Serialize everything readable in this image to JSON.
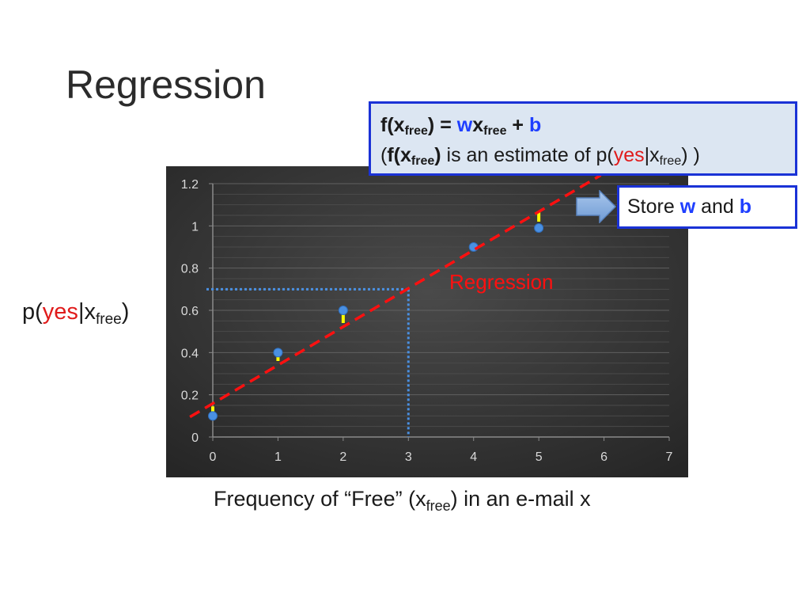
{
  "slide": {
    "title": "Regression"
  },
  "formula": {
    "line1": {
      "lhs": "f(x",
      "lhs_sub": "free",
      "lhs_close": ") = ",
      "w": "w",
      "x": "x",
      "x_sub": "free",
      "plus": " + ",
      "b": "b"
    },
    "line2": {
      "open": "(",
      "f": "f(x",
      "f_sub": "free",
      "f_close": ")",
      "text": " is an estimate of p(",
      "yes": "yes",
      "bar": "|x",
      "x_sub": "free",
      "close": ") )"
    }
  },
  "store_box": {
    "text": "Store ",
    "w": "w",
    "and": " and ",
    "b": "b"
  },
  "axis_labels": {
    "y": {
      "p": "p(",
      "yes": "yes",
      "bar": "|x",
      "sub": "free",
      "close": ")"
    },
    "x": {
      "text": "Frequency of “Free” (x",
      "sub": "free",
      "rest": ") in an e-mail x"
    }
  },
  "chart_data": {
    "type": "scatter",
    "x_ticks": [
      0,
      1,
      2,
      3,
      4,
      5,
      6,
      7
    ],
    "y_ticks": [
      0,
      0.2,
      0.4,
      0.6,
      0.8,
      1,
      1.2
    ],
    "x_tick_labels": [
      "0",
      "1",
      "2",
      "3",
      "4",
      "5",
      "6",
      "7"
    ],
    "y_tick_labels": [
      "0",
      "0.2",
      "0.4",
      "0.6",
      "0.8",
      "1",
      "1.2"
    ],
    "xlim": [
      0,
      7
    ],
    "ylim": [
      0,
      1.2
    ],
    "grid": true,
    "points": [
      {
        "x": 0,
        "y": 0.1
      },
      {
        "x": 1,
        "y": 0.4
      },
      {
        "x": 2,
        "y": 0.6
      },
      {
        "x": 4,
        "y": 0.9
      },
      {
        "x": 5,
        "y": 0.99
      }
    ],
    "regression_line": {
      "label": "Regression",
      "from": {
        "x": -0.35,
        "y": 0.095
      },
      "to": {
        "x": 5.95,
        "y": 1.24
      }
    },
    "prediction_guide": {
      "x": 3,
      "y": 0.7
    },
    "residual_marks": [
      {
        "x": 0,
        "y_from": 0.115,
        "y_to": 0.145
      },
      {
        "x": 1,
        "y_from": 0.36,
        "y_to": 0.385
      },
      {
        "x": 2,
        "y_from": 0.54,
        "y_to": 0.58
      },
      {
        "x": 5,
        "y_from": 1.02,
        "y_to": 1.065
      }
    ],
    "colors": {
      "background": "#3a3a3a",
      "points": "#4a90e2",
      "regression": "#ff1010",
      "guide": "#4a90e2",
      "residual": "#ffff00",
      "grid": "#555555",
      "tick_text": "#d9d9d9"
    }
  }
}
